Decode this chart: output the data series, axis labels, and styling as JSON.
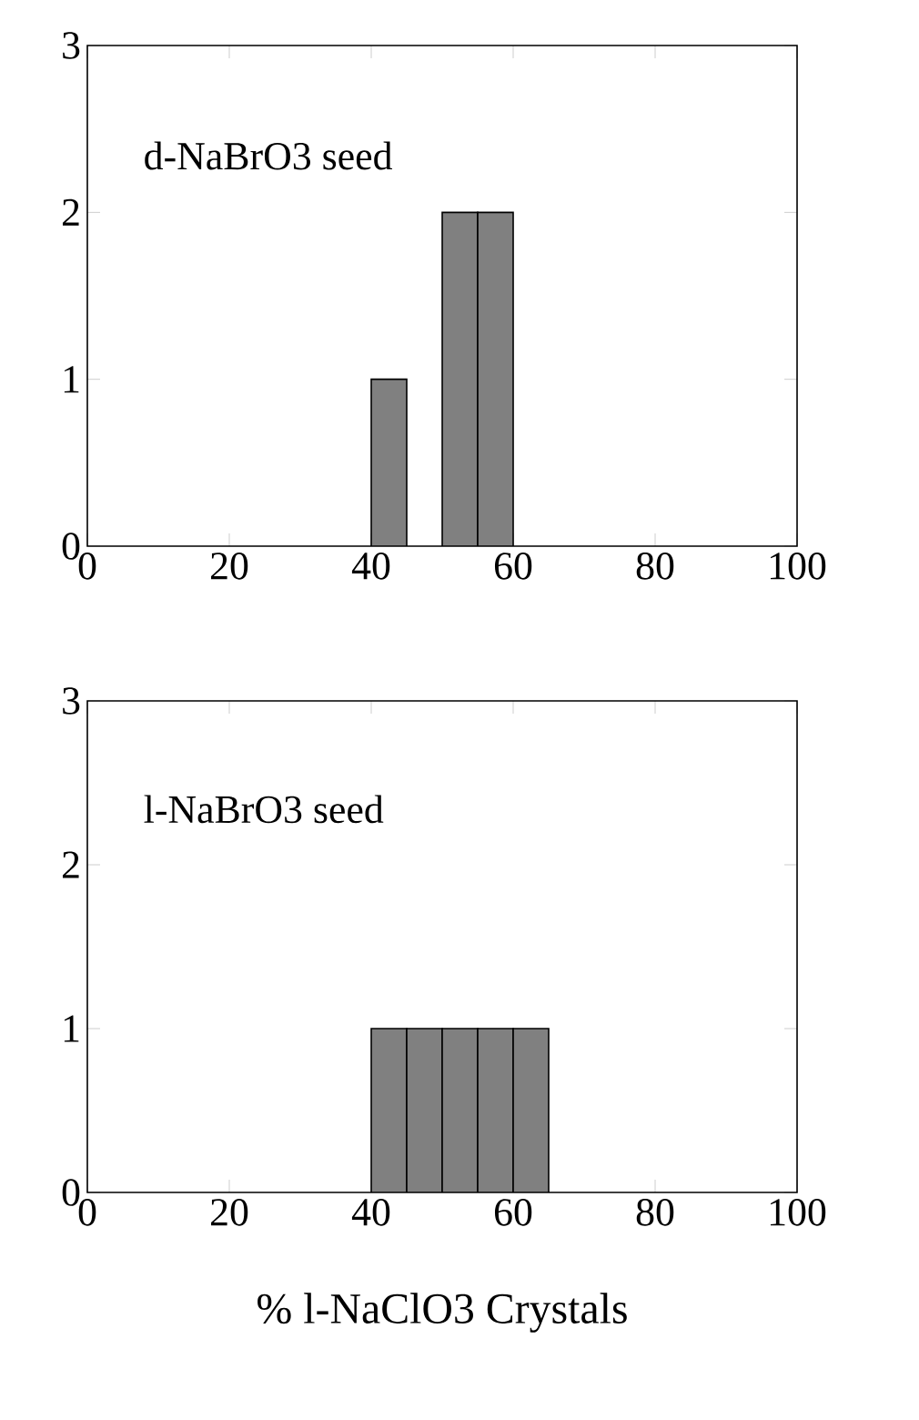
{
  "chart_data": [
    {
      "type": "histogram",
      "bins": [
        40,
        45,
        50,
        55,
        60
      ],
      "values": [
        1,
        0,
        2,
        2
      ],
      "color": "#808080",
      "xlim": [
        0,
        100
      ],
      "xticks": [
        0,
        20,
        40,
        60,
        80,
        100
      ],
      "ylim": [
        0,
        3
      ],
      "yticks": [
        0,
        1,
        2,
        3
      ],
      "annotations": [
        "d-NaBrO3  seed"
      ]
    },
    {
      "type": "histogram",
      "bins": [
        40,
        45,
        50,
        55,
        60,
        65
      ],
      "values": [
        1,
        1,
        1,
        1,
        1
      ],
      "color": "#808080",
      "xlim": [
        0,
        100
      ],
      "xticks": [
        0,
        20,
        40,
        60,
        80,
        100
      ],
      "ylim": [
        0,
        3
      ],
      "yticks": [
        0,
        1,
        2,
        3
      ],
      "xlabel": "% l-NaClO3 Crystals",
      "annotations": [
        "l-NaBrO3 seed"
      ]
    }
  ]
}
